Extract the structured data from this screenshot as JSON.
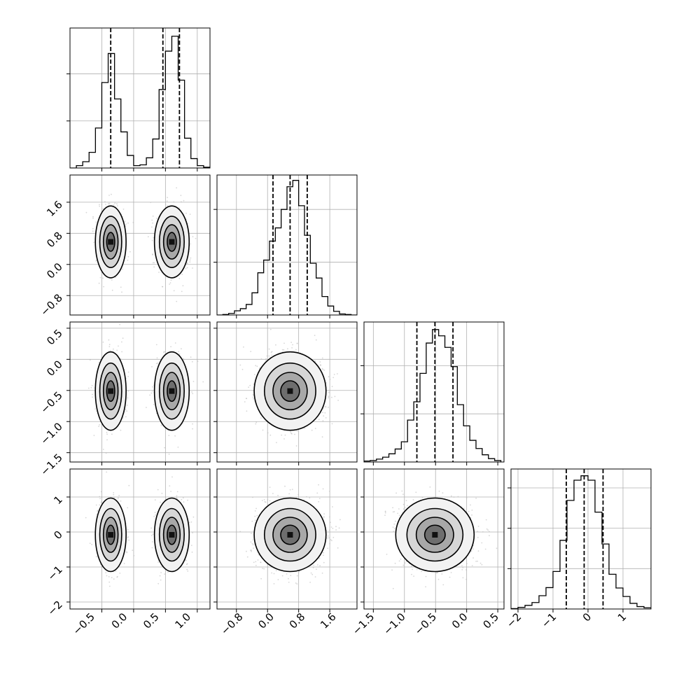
{
  "chart_data": {
    "type": "corner",
    "n_params": 4,
    "colors": {
      "contour": "#000000",
      "scatter": "#bdbdbd",
      "grid": "#b0b0b0",
      "background": "#ffffff"
    },
    "grid": true,
    "params": [
      {
        "range": [
          -1.0,
          1.2
        ],
        "ticks": [
          -0.5,
          0.0,
          0.5,
          1.0
        ],
        "tick_labels": [
          "−0.5",
          "0.0",
          "0.5",
          "1.0"
        ],
        "quantiles": [
          -0.36,
          0.46,
          0.72
        ],
        "hist_bins": [
          -1.0,
          -0.9,
          -0.8,
          -0.7,
          -0.6,
          -0.5,
          -0.4,
          -0.3,
          -0.2,
          -0.1,
          0.0,
          0.1,
          0.2,
          0.3,
          0.4,
          0.5,
          0.6,
          0.7,
          0.8,
          0.9,
          1.0,
          1.1,
          1.2
        ],
        "hist_counts": [
          0,
          3,
          8,
          20,
          51,
          109,
          146,
          88,
          46,
          16,
          3,
          4,
          13,
          37,
          100,
          149,
          168,
          112,
          38,
          12,
          3,
          1
        ],
        "hist_ymax": 175,
        "hist_yticks": [
          60,
          120,
          180
        ],
        "blobs": [
          {
            "mean": -0.36,
            "sd": 0.115,
            "weight": 0.5
          },
          {
            "mean": 0.6,
            "sd": 0.13,
            "weight": 0.5
          }
        ]
      },
      {
        "range": [
          -1.3,
          2.3
        ],
        "ticks": [
          -0.8,
          0.0,
          0.8,
          1.6
        ],
        "tick_labels": [
          "−0.8",
          "0.0",
          "0.8",
          "1.6"
        ],
        "quantiles": [
          0.14,
          0.58,
          1.02
        ],
        "hist_bins": [
          -1.3,
          -1.15,
          -1.0,
          -0.85,
          -0.7,
          -0.55,
          -0.4,
          -0.25,
          -0.1,
          0.05,
          0.2,
          0.35,
          0.5,
          0.65,
          0.8,
          0.95,
          1.1,
          1.25,
          1.4,
          1.55,
          1.7,
          1.85,
          2.0,
          2.15,
          2.3
        ],
        "hist_counts": [
          0,
          1,
          3,
          8,
          12,
          20,
          42,
          80,
          104,
          140,
          165,
          200,
          243,
          255,
          207,
          151,
          98,
          70,
          35,
          17,
          7,
          2,
          1,
          0
        ],
        "hist_ymax": 260,
        "hist_yticks": [
          100,
          200,
          300
        ],
        "blobs": [
          {
            "mean": 0.58,
            "sd": 0.44,
            "weight": 1
          }
        ]
      },
      {
        "range": [
          -1.65,
          0.6
        ],
        "ticks": [
          -1.5,
          -1.0,
          -0.5,
          0.0,
          0.5
        ],
        "tick_labels": [
          "−1.5",
          "−1.0",
          "−0.5",
          "0.0",
          "0.5"
        ],
        "quantiles": [
          -0.8,
          -0.51,
          -0.22
        ],
        "hist_bins": [
          -1.65,
          -1.55,
          -1.45,
          -1.35,
          -1.25,
          -1.15,
          -1.05,
          -0.95,
          -0.85,
          -0.75,
          -0.65,
          -0.55,
          -0.45,
          -0.35,
          -0.25,
          -0.15,
          -0.05,
          0.05,
          0.15,
          0.25,
          0.35,
          0.45,
          0.55
        ],
        "hist_counts": [
          2,
          3,
          6,
          10,
          17,
          27,
          42,
          87,
          125,
          184,
          247,
          275,
          262,
          238,
          198,
          119,
          75,
          45,
          28,
          15,
          7,
          3
        ],
        "hist_ymax": 285,
        "hist_yticks": [
          100,
          200,
          300
        ],
        "blobs": [
          {
            "mean": -0.51,
            "sd": 0.3,
            "weight": 1
          }
        ]
      },
      {
        "range": [
          -2.2,
          1.8
        ],
        "ticks": [
          -2,
          -1,
          0,
          1
        ],
        "tick_labels": [
          "−2",
          "−1",
          "0",
          "1"
        ],
        "quantiles": [
          -0.62,
          -0.11,
          0.43
        ],
        "hist_bins": [
          -2.2,
          -2.0,
          -1.8,
          -1.6,
          -1.4,
          -1.2,
          -1.0,
          -0.8,
          -0.6,
          -0.4,
          -0.2,
          0.0,
          0.2,
          0.4,
          0.6,
          0.8,
          1.0,
          1.2,
          1.4,
          1.6,
          1.8
        ],
        "hist_counts": [
          1,
          4,
          9,
          16,
          33,
          53,
          93,
          170,
          269,
          319,
          330,
          319,
          240,
          161,
          86,
          52,
          31,
          14,
          6,
          3
        ],
        "hist_ymax": 340,
        "hist_yticks": [
          100,
          200,
          300
        ],
        "blobs": [
          {
            "mean": -0.08,
            "sd": 0.5,
            "weight": 1
          }
        ]
      }
    ]
  }
}
